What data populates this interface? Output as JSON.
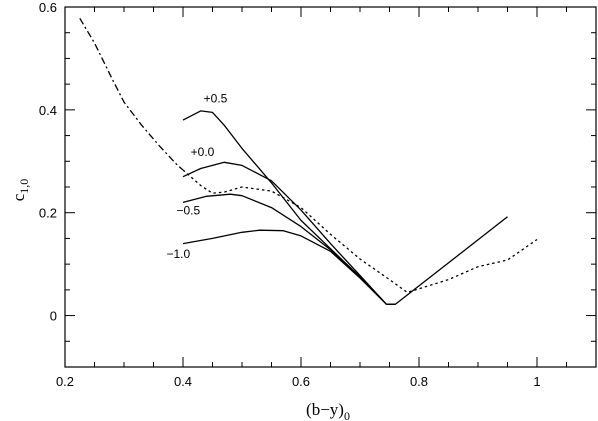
{
  "chart_data": {
    "type": "line",
    "title": "",
    "xlabel_main": "(b−y)",
    "xlabel_sub": "0",
    "ylabel_main": "c",
    "ylabel_sub": "1,0",
    "xlim": [
      0.2,
      1.1
    ],
    "ylim": [
      -0.1,
      0.6
    ],
    "x_major_ticks": [
      0.2,
      0.4,
      0.6,
      0.8,
      1.0
    ],
    "x_tick_labels": [
      "0.2",
      "0.4",
      "0.6",
      "0.8",
      "1"
    ],
    "x_minor_step": 0.05,
    "y_major_ticks": [
      0.0,
      0.2,
      0.4,
      0.6
    ],
    "y_tick_labels": [
      "0",
      "0.2",
      "0.4",
      "0.6"
    ],
    "y_minor_step": 0.05,
    "grid": false,
    "series": [
      {
        "label": "+0.5",
        "style": "solid",
        "label_at": [
          0.435,
          0.414
        ],
        "x": [
          0.4,
          0.43,
          0.45,
          0.47,
          0.5,
          0.55,
          0.6,
          0.65,
          0.7,
          0.745,
          0.76,
          0.95
        ],
        "y": [
          0.38,
          0.398,
          0.395,
          0.37,
          0.325,
          0.258,
          0.185,
          0.13,
          0.075,
          0.022,
          0.022,
          0.192
        ]
      },
      {
        "label": "+0.0",
        "style": "solid",
        "label_at": [
          0.413,
          0.31
        ],
        "x": [
          0.4,
          0.43,
          0.47,
          0.5,
          0.55,
          0.6,
          0.65,
          0.7,
          0.745,
          0.76
        ],
        "y": [
          0.27,
          0.286,
          0.298,
          0.292,
          0.262,
          0.205,
          0.14,
          0.078,
          0.022,
          0.022
        ]
      },
      {
        "label": "−0.5",
        "style": "solid",
        "label_at": [
          0.389,
          0.197
        ],
        "x": [
          0.4,
          0.44,
          0.48,
          0.5,
          0.55,
          0.6,
          0.65,
          0.7,
          0.745,
          0.76
        ],
        "y": [
          0.22,
          0.232,
          0.236,
          0.233,
          0.21,
          0.173,
          0.128,
          0.075,
          0.022,
          0.022
        ]
      },
      {
        "label": "−1.0",
        "style": "solid",
        "label_at": [
          0.372,
          0.112
        ],
        "x": [
          0.4,
          0.45,
          0.5,
          0.53,
          0.57,
          0.6,
          0.65,
          0.7,
          0.745,
          0.76
        ],
        "y": [
          0.14,
          0.15,
          0.162,
          0.166,
          0.165,
          0.155,
          0.125,
          0.073,
          0.022,
          0.022
        ]
      },
      {
        "label": "",
        "style": "dashdot",
        "x": [
          0.225,
          0.25,
          0.28,
          0.3,
          0.33,
          0.36,
          0.39,
          0.4
        ],
        "y": [
          0.578,
          0.53,
          0.46,
          0.415,
          0.37,
          0.33,
          0.293,
          0.283
        ]
      },
      {
        "label": "",
        "style": "dotted",
        "x": [
          0.4,
          0.43,
          0.45,
          0.47,
          0.5,
          0.55,
          0.6,
          0.65,
          0.7,
          0.75,
          0.78,
          0.85,
          0.9,
          0.95,
          1.0
        ],
        "y": [
          0.283,
          0.253,
          0.238,
          0.24,
          0.25,
          0.242,
          0.21,
          0.158,
          0.11,
          0.07,
          0.045,
          0.07,
          0.095,
          0.108,
          0.148
        ]
      }
    ]
  }
}
